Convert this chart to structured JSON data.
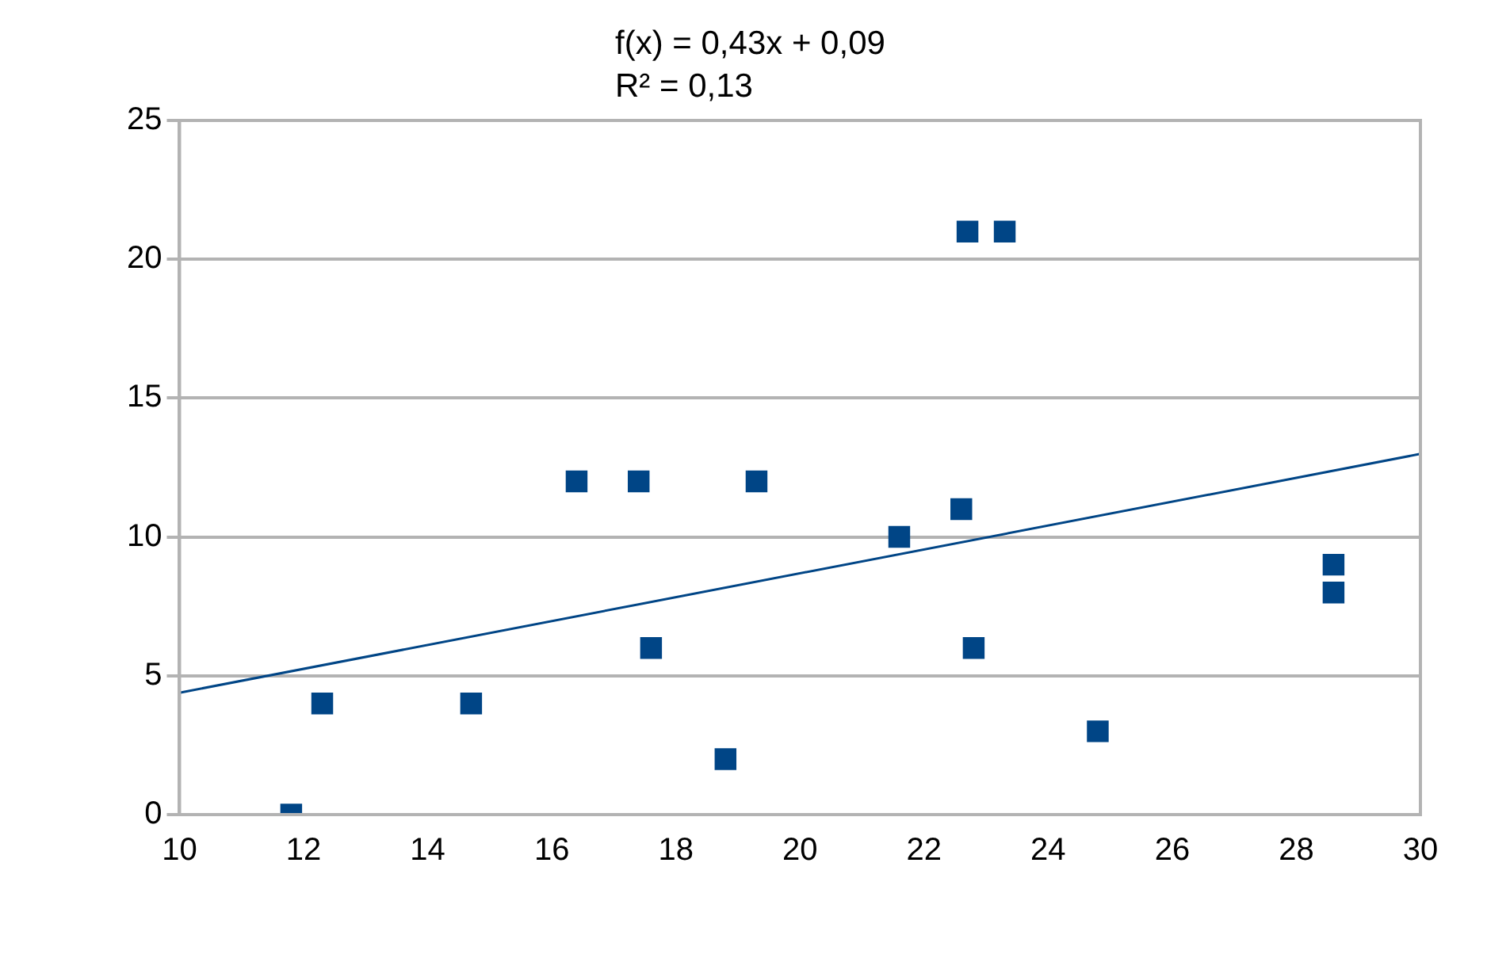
{
  "chart_data": {
    "type": "scatter",
    "annotations": [
      "f(x) = 0,43x + 0,09",
      "R² = 0,13"
    ],
    "series": [
      {
        "color": "#004586",
        "x": [
          11.8,
          12.3,
          14.7,
          16.4,
          17.4,
          17.6,
          18.8,
          19.3,
          21.6,
          22.6,
          22.7,
          23.3,
          22.8,
          24.8,
          28.6,
          28.6
        ],
        "values": [
          0,
          4,
          4,
          12,
          12,
          6,
          2,
          12,
          10,
          11,
          21,
          21,
          6,
          3,
          8,
          9
        ]
      },
      {
        "type": "line",
        "color": "#004586",
        "marker": "none",
        "x": [
          10,
          30
        ],
        "values": [
          4.39,
          12.99
        ]
      }
    ],
    "marker": "square",
    "xlim": [
      10,
      30
    ],
    "xticks": [
      10,
      12,
      14,
      16,
      18,
      20,
      22,
      24,
      26,
      28,
      30
    ],
    "ylim": [
      0,
      25
    ],
    "yticks": [
      0,
      5,
      10,
      15,
      20,
      25
    ],
    "grid": "y",
    "legend": false
  }
}
